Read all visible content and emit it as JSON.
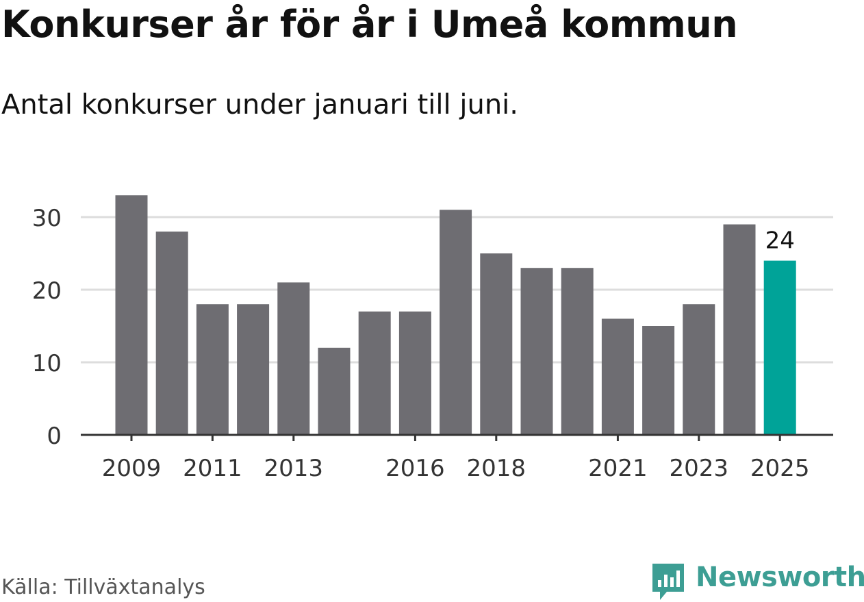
{
  "header": {
    "title": "Konkurser år för år i Umeå kommun",
    "subtitle": "Antal konkurser under januari till juni."
  },
  "footer": {
    "source": "Källa: Tillväxtanalys",
    "logo_text": "Newsworthy",
    "logo_icon": "bar-chart-speech-bubble-icon"
  },
  "colors": {
    "bar": "#6e6d72",
    "highlight": "#00a398",
    "grid": "#dddddd",
    "axis": "#333333",
    "text": "#333333",
    "brand": "#3d9e94"
  },
  "chart_data": {
    "type": "bar",
    "categories": [
      "2009",
      "2010",
      "2011",
      "2012",
      "2013",
      "2014",
      "2015",
      "2016",
      "2017",
      "2018",
      "2019",
      "2020",
      "2021",
      "2022",
      "2023",
      "2024",
      "2025"
    ],
    "values": [
      33,
      28,
      18,
      18,
      21,
      12,
      17,
      17,
      31,
      25,
      23,
      23,
      16,
      15,
      18,
      29,
      24
    ],
    "x_tick_labels": [
      "2009",
      "2011",
      "2013",
      "2016",
      "2018",
      "2021",
      "2023",
      "2025"
    ],
    "y_ticks": [
      0,
      10,
      20,
      30
    ],
    "ylim": [
      0,
      34
    ],
    "highlight": {
      "category": "2025",
      "value_label": "24"
    },
    "grid": true,
    "legend": "none",
    "title": "Konkurser år för år i Umeå kommun",
    "subtitle": "Antal konkurser under januari till juni.",
    "xlabel": "",
    "ylabel": ""
  }
}
